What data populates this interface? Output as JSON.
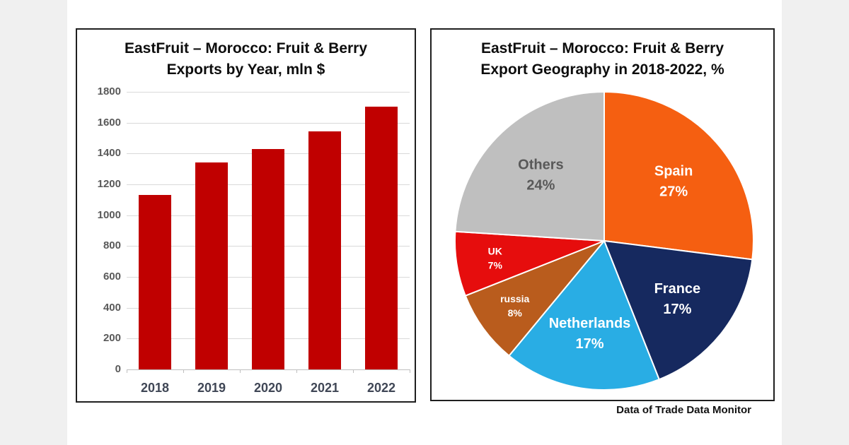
{
  "source_note": "Data of Trade Data Monitor",
  "chart_data": [
    {
      "type": "bar",
      "title": "EastFruit – Morocco: Fruit & Berry Exports by Year, mln $",
      "title_lines": [
        "EastFruit – Morocco: Fruit & Berry",
        "Exports by Year, mln $"
      ],
      "categories": [
        "2018",
        "2019",
        "2020",
        "2021",
        "2022"
      ],
      "values": [
        1130,
        1340,
        1430,
        1545,
        1705
      ],
      "ylim": [
        0,
        1800
      ],
      "ystep": 200,
      "grid": true,
      "legend": "none",
      "bar_color": "#c00000",
      "grid_color": "#d9d9d9",
      "axis_color": "#bfbfbf",
      "y_tick_label_color": "#595959",
      "category_label_color": "#404756"
    },
    {
      "type": "pie",
      "title": "EastFruit – Morocco: Fruit & Berry Export Geography in 2018-2022, %",
      "title_lines": [
        "EastFruit – Morocco: Fruit & Berry",
        "Export Geography in 2018-2022, %"
      ],
      "start_angle_deg": 0,
      "direction": "clockwise",
      "legend": "none",
      "slices": [
        {
          "label": "Spain",
          "value": 27,
          "color": "#f55f11",
          "label_color": "#ffffff"
        },
        {
          "label": "France",
          "value": 17,
          "color": "#16295f",
          "label_color": "#ffffff"
        },
        {
          "label": "Netherlands",
          "value": 17,
          "color": "#29ade4",
          "label_color": "#ffffff"
        },
        {
          "label": "russia",
          "value": 8,
          "color": "#b95c1d",
          "label_color": "#ffffff"
        },
        {
          "label": "UK",
          "value": 7,
          "color": "#e60d0d",
          "label_color": "#ffffff"
        },
        {
          "label": "Others",
          "value": 24,
          "color": "#bfbfbf",
          "label_color": "#595959"
        }
      ]
    }
  ]
}
